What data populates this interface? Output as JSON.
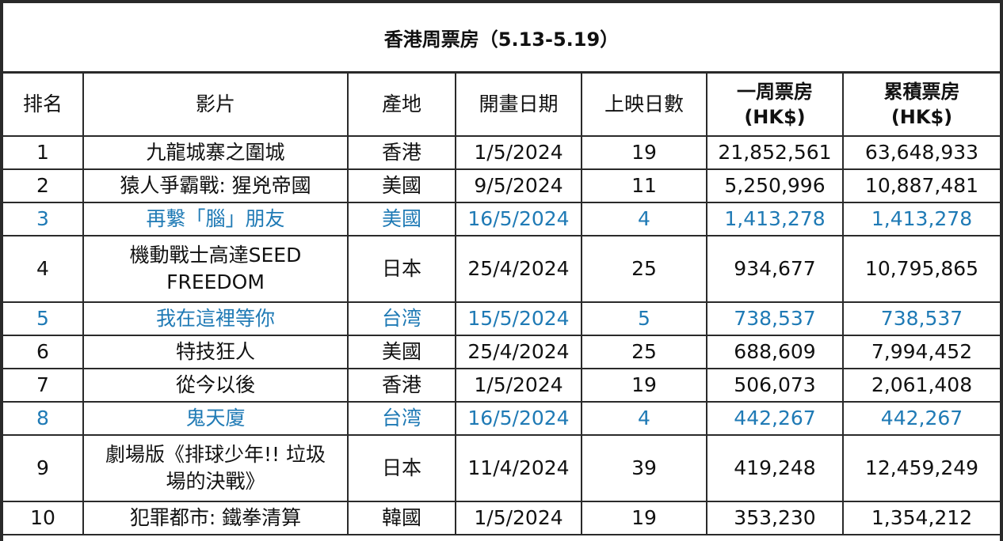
{
  "title": "香港周票房（5.13-5.19）",
  "headers": {
    "rank": "排名",
    "film": "影片",
    "origin": "產地",
    "release": "開畫日期",
    "days": "上映日數",
    "weekly": "一周票房",
    "weekly_unit": "(HK$)",
    "total": "累積票房",
    "total_unit": "(HK$)"
  },
  "highlight_color": "#1f7ab5",
  "rows": [
    {
      "rank": "1",
      "film": "九龍城寨之圍城",
      "film2": "",
      "origin": "香港",
      "release": "1/5/2024",
      "days": "19",
      "weekly": "21,852,561",
      "total": "63,648,933",
      "highlight": false
    },
    {
      "rank": "2",
      "film": "猿人爭霸戰: 猩兇帝國",
      "film2": "",
      "origin": "美國",
      "release": "9/5/2024",
      "days": "11",
      "weekly": "5,250,996",
      "total": "10,887,481",
      "highlight": false
    },
    {
      "rank": "3",
      "film": "再繫「腦」朋友",
      "film2": "",
      "origin": "美國",
      "release": "16/5/2024",
      "days": "4",
      "weekly": "1,413,278",
      "total": "1,413,278",
      "highlight": true
    },
    {
      "rank": "4",
      "film": "機動戰士高達SEED",
      "film2": "FREEDOM",
      "origin": "日本",
      "release": "25/4/2024",
      "days": "25",
      "weekly": "934,677",
      "total": "10,795,865",
      "highlight": false
    },
    {
      "rank": "5",
      "film": "我在這裡等你",
      "film2": "",
      "origin": "台湾",
      "release": "15/5/2024",
      "days": "5",
      "weekly": "738,537",
      "total": "738,537",
      "highlight": true
    },
    {
      "rank": "6",
      "film": "特技狂人",
      "film2": "",
      "origin": "美國",
      "release": "25/4/2024",
      "days": "25",
      "weekly": "688,609",
      "total": "7,994,452",
      "highlight": false
    },
    {
      "rank": "7",
      "film": "從今以後",
      "film2": "",
      "origin": "香港",
      "release": "1/5/2024",
      "days": "19",
      "weekly": "506,073",
      "total": "2,061,408",
      "highlight": false
    },
    {
      "rank": "8",
      "film": "鬼天廈",
      "film2": "",
      "origin": "台湾",
      "release": "16/5/2024",
      "days": "4",
      "weekly": "442,267",
      "total": "442,267",
      "highlight": true
    },
    {
      "rank": "9",
      "film": "劇場版《排球少年!! 垃圾",
      "film2": "場的決戰》",
      "origin": "日本",
      "release": "11/4/2024",
      "days": "39",
      "weekly": "419,248",
      "total": "12,459,249",
      "highlight": false
    },
    {
      "rank": "10",
      "film": "犯罪都市: 鐵拳清算",
      "film2": "",
      "origin": "韓國",
      "release": "1/5/2024",
      "days": "19",
      "weekly": "353,230",
      "total": "1,354,212",
      "highlight": false
    }
  ]
}
